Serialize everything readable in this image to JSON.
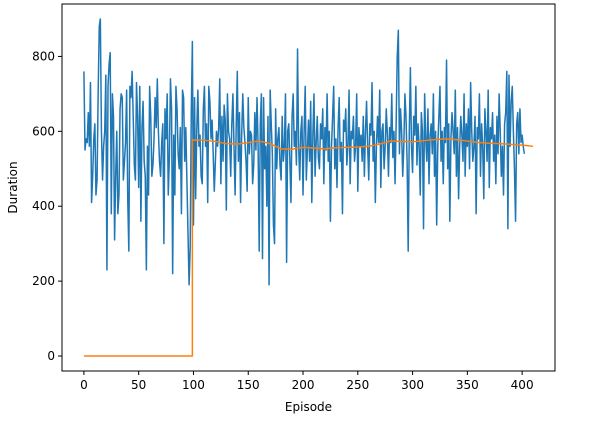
{
  "chart_data": {
    "type": "line",
    "title": "",
    "xlabel": "Episode",
    "ylabel": "Duration",
    "xlim": [
      -20,
      430
    ],
    "ylim": [
      -40,
      940
    ],
    "xticks": [
      0,
      50,
      100,
      150,
      200,
      250,
      300,
      350,
      400
    ],
    "yticks": [
      0,
      200,
      400,
      600,
      800
    ],
    "grid": false,
    "series": [
      {
        "color": "#1f77b4",
        "x_start": 0,
        "values": [
          760,
          550,
          580,
          570,
          650,
          560,
          730,
          410,
          480,
          580,
          620,
          430,
          470,
          700,
          880,
          900,
          600,
          470,
          560,
          600,
          750,
          230,
          720,
          780,
          810,
          380,
          700,
          640,
          310,
          480,
          600,
          380,
          430,
          660,
          700,
          690,
          470,
          520,
          570,
          710,
          420,
          280,
          720,
          690,
          760,
          640,
          510,
          470,
          730,
          640,
          450,
          720,
          360,
          610,
          680,
          520,
          480,
          230,
          560,
          430,
          720,
          640,
          480,
          510,
          580,
          690,
          610,
          740,
          600,
          520,
          480,
          570,
          620,
          300,
          660,
          580,
          700,
          430,
          530,
          740,
          660,
          220,
          590,
          430,
          720,
          660,
          540,
          500,
          610,
          380,
          710,
          690,
          520,
          610,
          470,
          330,
          190,
          290,
          650,
          840,
          350,
          690,
          420,
          600,
          710,
          560,
          590,
          480,
          460,
          660,
          720,
          560,
          620,
          410,
          720,
          680,
          580,
          630,
          540,
          440,
          520,
          600,
          560,
          610,
          740,
          460,
          640,
          520,
          670,
          630,
          390,
          700,
          600,
          580,
          480,
          620,
          700,
          560,
          430,
          610,
          760,
          520,
          650,
          410,
          590,
          700,
          610,
          570,
          520,
          440,
          690,
          540,
          600,
          590,
          460,
          510,
          650,
          550,
          690,
          560,
          280,
          620,
          700,
          260,
          690,
          500,
          560,
          400,
          640,
          190,
          710,
          620,
          540,
          350,
          300,
          660,
          500,
          580,
          610,
          510,
          470,
          640,
          520,
          560,
          700,
          250,
          600,
          620,
          520,
          410,
          640,
          700,
          560,
          600,
          510,
          820,
          560,
          470,
          600,
          640,
          430,
          600,
          720,
          470,
          550,
          630,
          520,
          680,
          410,
          590,
          700,
          480,
          570,
          640,
          530,
          500,
          620,
          580,
          660,
          460,
          610,
          550,
          700,
          520,
          600,
          360,
          560,
          640,
          720,
          500,
          580,
          450,
          610,
          690,
          520,
          570,
          380,
          630,
          600,
          660,
          510,
          560,
          710,
          460,
          600,
          580,
          640,
          520,
          560,
          700,
          440,
          610,
          560,
          590,
          520,
          640,
          480,
          600,
          680,
          560,
          470,
          620,
          590,
          730,
          520,
          600,
          410,
          560,
          640,
          570,
          710,
          450,
          600,
          620,
          500,
          560,
          660,
          590,
          480,
          610,
          570,
          700,
          530,
          600,
          460,
          620,
          800,
          870,
          540,
          660,
          600,
          480,
          560,
          700,
          640,
          520,
          280,
          600,
          770,
          560,
          490,
          640,
          590,
          720,
          510,
          620,
          560,
          430,
          650,
          600,
          340,
          700,
          580,
          520,
          660,
          460,
          590,
          620,
          540,
          700,
          480,
          600,
          350,
          560,
          640,
          720,
          520,
          600,
          460,
          610,
          570,
          790,
          500,
          620,
          360,
          580,
          650,
          600,
          540,
          710,
          480,
          610,
          420,
          560,
          640,
          590,
          520,
          700,
          480,
          620,
          560,
          660,
          500,
          730,
          600,
          520,
          560,
          640,
          380,
          610,
          580,
          700,
          480,
          620,
          560,
          420,
          660,
          600,
          520,
          710,
          450,
          610,
          580,
          650,
          520,
          590,
          460,
          640,
          540,
          700,
          600,
          480,
          560,
          430,
          620,
          650,
          760,
          340,
          750,
          560,
          680,
          720,
          600,
          500,
          360,
          620,
          650,
          540,
          660,
          570,
          590,
          560,
          540
        ]
      },
      {
        "color": "#ff7f0e",
        "points": [
          [
            0,
            0
          ],
          [
            99,
            0
          ],
          [
            99,
            577
          ],
          [
            110,
            576
          ],
          [
            120,
            573
          ],
          [
            130,
            567
          ],
          [
            140,
            566
          ],
          [
            150,
            570
          ],
          [
            160,
            574
          ],
          [
            170,
            567
          ],
          [
            180,
            553
          ],
          [
            190,
            552
          ],
          [
            200,
            557
          ],
          [
            210,
            555
          ],
          [
            220,
            553
          ],
          [
            230,
            556
          ],
          [
            240,
            557
          ],
          [
            250,
            558
          ],
          [
            260,
            560
          ],
          [
            270,
            566
          ],
          [
            280,
            574
          ],
          [
            290,
            573
          ],
          [
            300,
            572
          ],
          [
            310,
            575
          ],
          [
            320,
            578
          ],
          [
            330,
            580
          ],
          [
            340,
            578
          ],
          [
            350,
            574
          ],
          [
            360,
            570
          ],
          [
            370,
            568
          ],
          [
            380,
            567
          ],
          [
            390,
            565
          ],
          [
            400,
            563
          ],
          [
            410,
            560
          ]
        ]
      }
    ]
  }
}
